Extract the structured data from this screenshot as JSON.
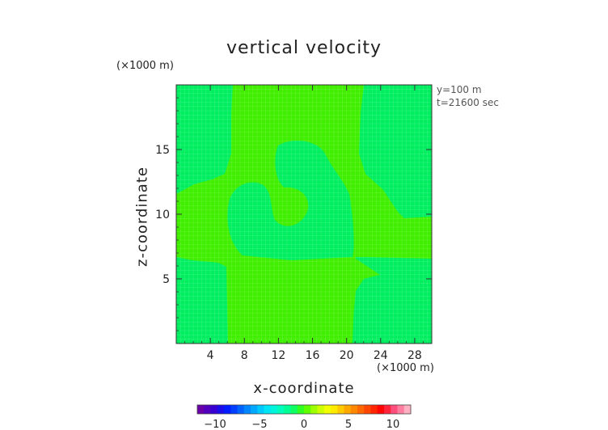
{
  "chart_data": {
    "type": "heatmap",
    "title": "vertical velocity",
    "xlabel": "x-coordinate",
    "ylabel": "z-coordinate",
    "x_multiplier": "(×1000 m)",
    "y_multiplier": "(×1000 m)",
    "annotations": [
      "y=100 m",
      "t=21600 sec"
    ],
    "xlim": [
      0,
      30
    ],
    "ylim": [
      0,
      20
    ],
    "x_ticks": [
      4,
      8,
      12,
      16,
      20,
      24,
      28
    ],
    "y_ticks": [
      5,
      10,
      15
    ],
    "colorbar": {
      "range": [
        -12,
        12
      ],
      "ticks": [
        -10,
        -5,
        0,
        5,
        10
      ],
      "colors": [
        "#6a00a8",
        "#3a00d0",
        "#0018ff",
        "#005cff",
        "#00a0ff",
        "#00e0ff",
        "#00ffc8",
        "#00ff80",
        "#40ff00",
        "#b8ff00",
        "#ffff00",
        "#ffc000",
        "#ff8000",
        "#ff4000",
        "#ff0000",
        "#ff5080",
        "#ffb0c0"
      ]
    },
    "field": {
      "background_value": 0.5,
      "background_color": "#00ee60",
      "positive_regions_color": "#40ee00",
      "positive_regions_value": 1.5
    }
  }
}
